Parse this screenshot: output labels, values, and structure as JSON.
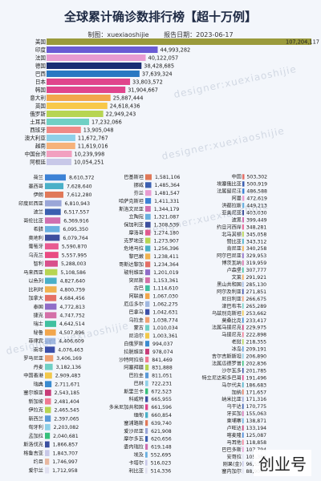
{
  "title": "全球累计确诊数排行榜【超十万例】",
  "producer_label": "制图：xuexiaoshijie",
  "report_label": "报告日期：2023-06-17",
  "watermark": "designer:xuexiaoshijie",
  "brand": "创业号",
  "chart_data": [
    {
      "type": "bar",
      "orientation": "horizontal",
      "xlim": [
        0,
        107204117
      ],
      "categories": [
        "美国",
        "印度",
        "法国",
        "德国",
        "巴西",
        "日本",
        "韩国",
        "意大利",
        "英国",
        "俄罗斯",
        "土耳其",
        "西班牙",
        "澳大利亚",
        "越南",
        "中国台湾",
        "阿根廷"
      ],
      "values": [
        107204117,
        44993282,
        40122057,
        38428685,
        37639324,
        33803572,
        31904667,
        25887444,
        24618436,
        22949243,
        17232066,
        13905048,
        11672767,
        11619016,
        10239998,
        10054251
      ],
      "value_labels": [
        "107,204,117",
        "44,993,282",
        "40,122,057",
        "38,428,685",
        "37,639,324",
        "33,803,572",
        "31,904,667",
        "25,887,444",
        "24,618,436",
        "22,949,243",
        "17,232,066",
        "13,905,048",
        "11,672,767",
        "11,619,016",
        "10,239,998",
        "10,054,251"
      ],
      "colors": [
        "#9a9a3c",
        "#6a5bd4",
        "#e89bd1",
        "#1b2f73",
        "#2a78c2",
        "#e0458c",
        "#e0458c",
        "#f2a64c",
        "#f8c84a",
        "#b7d552",
        "#6fd0c4",
        "#ef8a86",
        "#8ed0e8",
        "#f6b27a",
        "#f2a0c0",
        "#c8c8e8"
      ]
    },
    {
      "type": "bar",
      "orientation": "horizontal",
      "xlim": [
        0,
        8610372
      ],
      "categories": [
        "荷兰",
        "墨西哥",
        "伊朗",
        "印度尼西亚",
        "波兰",
        "哥伦比亚",
        "希腊",
        "奥地利",
        "葡萄牙",
        "乌克兰",
        "智利",
        "马来西亚",
        "以色列",
        "比利时",
        "加拿大",
        "泰国",
        "捷克",
        "瑞士",
        "秘鲁",
        "菲律宾",
        "南非",
        "罗马尼亚",
        "丹麦",
        "中国香港",
        "瑞典",
        "塞尔维亚",
        "新加坡",
        "伊拉克",
        "新西兰",
        "匈牙利",
        "孟加拉",
        "斯洛伐克",
        "格鲁吉亚",
        "约旦",
        "爱尔兰"
      ],
      "values": [
        8610372,
        7628640,
        7612280,
        6810943,
        6517557,
        6369916,
        6095350,
        6079764,
        5590870,
        5557995,
        5288003,
        5108586,
        4827640,
        4800759,
        4684456,
        4772813,
        4747752,
        4642514,
        4507896,
        4406609,
        4076463,
        3406169,
        3182136,
        2909483,
        2711671,
        2543185,
        2481404,
        2465545,
        2397065,
        2203082,
        2040681,
        1866857,
        1843707,
        1746997,
        1712958
      ],
      "value_labels": [
        "8,610,372",
        "7,628,640",
        "7,612,280",
        "6,810,943",
        "6,517,557",
        "6,369,916",
        "6,095,350",
        "6,079,764",
        "5,590,870",
        "5,557,995",
        "5,288,003",
        "5,108,586",
        "4,827,640",
        "4,800,759",
        "4,684,456",
        "4,772,813",
        "4,747,752",
        "4,642,514",
        "4,507,896",
        "4,406,609",
        "4,076,463",
        "3,406,169",
        "3,182,136",
        "2,909,483",
        "2,711,671",
        "2,543,185",
        "2,481,404",
        "2,465,545",
        "2,397,065",
        "2,203,082",
        "2,040,681",
        "1,866,857",
        "1,843,707",
        "1,746,997",
        "1,712,958"
      ],
      "colors": [
        "#3c82d6",
        "#4ab0c8",
        "#e07858",
        "#9aa6d8",
        "#3b5fb0",
        "#d06fb0",
        "#6ab0e0",
        "#3d4f9e",
        "#e85a90",
        "#e94b82",
        "#d8508c",
        "#b7d552",
        "#4ab0c8",
        "#f0b250",
        "#e46f66",
        "#8f6cc8",
        "#d470a8",
        "#40c0a0",
        "#f2a64c",
        "#a0b8e0",
        "#3c4fa8",
        "#f0a070",
        "#6fd0c4",
        "#f2c84a",
        "#3a8bd0",
        "#c83c78",
        "#f07a92",
        "#b7d552",
        "#5a9ad8",
        "#8ed0e8",
        "#36c07a",
        "#3a4fa0",
        "#c8c8e8",
        "#e8b8a0",
        "#e0e0f0"
      ]
    },
    {
      "type": "bar",
      "orientation": "horizontal",
      "xlim": [
        0,
        1581106
      ],
      "categories": [
        "巴基斯坦",
        "挪威",
        "芬兰",
        "哈萨克斯坦",
        "斯洛文尼亚",
        "立陶宛",
        "保加利亚",
        "摩洛哥",
        "克罗地亚",
        "危地马拉",
        "黎巴嫩",
        "哥斯达黎加",
        "玻利维亚",
        "突尼斯",
        "古巴",
        "阿联酋",
        "厄瓜多尔",
        "巴拿马",
        "乌拉圭",
        "蒙古",
        "尼泊尔",
        "白俄罗斯",
        "拉脱维亚",
        "沙特阿拉伯",
        "阿塞拜疆",
        "巴拉圭",
        "巴林",
        "斯里兰卡",
        "科威特",
        "多米尼加共和国",
        "缅甸",
        "塞浦路斯",
        "爱沙尼亚",
        "摩尔多瓦",
        "委内瑞拉",
        "埃及",
        "卡塔尔",
        "利比亚"
      ],
      "values": [
        1581106,
        1485364,
        1481547,
        1411331,
        1344179,
        1321087,
        1308539,
        1274180,
        1273907,
        1256396,
        1238411,
        1234364,
        1201019,
        1153361,
        1114610,
        1067030,
        1062275,
        1042631,
        1038774,
        1010034,
        1003361,
        994037,
        978074,
        841469,
        831888,
        811051,
        722231,
        672523,
        665955,
        661596,
        660854,
        639740,
        621908,
        620656,
        619148,
        552695,
        516023,
        514336
      ],
      "value_labels": [
        "1,581,106",
        "1,485,364",
        "1,481,547",
        "1,411,331",
        "1,344,179",
        "1,321,087",
        "1,308,539",
        "1,274,180",
        "1,273,907",
        "1,256,396",
        "1,238,411",
        "1,234,364",
        "1,201,019",
        "1,153,361",
        "1,114,610",
        "1,067,030",
        "1,062,275",
        "1,042,631",
        "1,038,774",
        "1,010,034",
        "1,003,361",
        "994,037",
        "978,074",
        "841,469",
        "831,888",
        "811,051",
        "722,231",
        "672,523",
        "665,955",
        "661,596",
        "660,854",
        "639,740",
        "621,908",
        "620,656",
        "619,148",
        "552,695",
        "516,023",
        "514,336"
      ],
      "colors": [
        "#e07858",
        "#3b5fb0",
        "#e89bd1",
        "#3c82d6",
        "#d06fb0",
        "#6ab0e0",
        "#3d4f9e",
        "#e85a90",
        "#b7d552",
        "#4ab0c8",
        "#f0b250",
        "#e46f66",
        "#8f6cc8",
        "#d470a8",
        "#40c0a0",
        "#f2a64c",
        "#a0b8e0",
        "#3c4fa8",
        "#f0a070",
        "#6fd0c4",
        "#f2c84a",
        "#3a8bd0",
        "#c83c78",
        "#f07a92",
        "#b7d552",
        "#5a9ad8",
        "#8ed0e8",
        "#36c07a",
        "#3a4fa0",
        "#e0458c",
        "#4ab0c8",
        "#e07858",
        "#9aa6d8",
        "#3b5fb0",
        "#d06fb0",
        "#6ab0e0",
        "#c8c8e8",
        "#e0e0f0"
      ]
    },
    {
      "type": "bar",
      "orientation": "horizontal",
      "xlim": [
        0,
        503302
      ],
      "categories": [
        "中国",
        "埃塞俄比亚",
        "法属留尼汪",
        "阿曼",
        "洪都拉斯",
        "亚美尼亚",
        "波黑",
        "约旦河西岸",
        "北马其顿",
        "赞比亚",
        "肯尼亚",
        "阿尔巴尼亚",
        "博茨瓦纳",
        "卢森堡",
        "文莱",
        "黑山共和国",
        "阿尔及利亚",
        "尼日利亚",
        "津巴布韦",
        "乌兹别克斯坦",
        "莫桑比克",
        "法属马提尼克",
        "马提尼克",
        "老挝",
        "冰岛",
        "吉尔吉斯斯坦",
        "法属瓜德罗普",
        "沙尔瓦多",
        "特立尼达和多巴哥",
        "马尔代夫",
        "加纳",
        "纳米比亚",
        "乌干达",
        "牙买加",
        "柬埔寨",
        "卢旺达",
        "喀麦隆",
        "马耳他",
        "巴巴多斯",
        "安哥拉",
        "刚果(金)",
        "塞内加尔"
      ],
      "values": [
        503302,
        500919,
        486588,
        472619,
        449213,
        403030,
        399449,
        348281,
        345058,
        343312,
        340258,
        329953,
        319959,
        307777,
        291921,
        285130,
        271851,
        266675,
        265289,
        253662,
        233417,
        229975,
        222898,
        218355,
        209191,
        206890,
        202836,
        201785,
        191496,
        186683,
        171657,
        171316,
        170775,
        155063,
        138871,
        133194,
        125087,
        118858,
        107794,
        105384,
        96556,
        88904
      ],
      "value_labels": [
        "503,302",
        "500,919",
        "486,588",
        "472,619",
        "449,213",
        "403,030",
        "399,449",
        "348,281",
        "345,058",
        "343,312",
        "340,258",
        "329,953",
        "319,959",
        "307,777",
        "291,921",
        "285,130",
        "271,851",
        "266,675",
        "265,289",
        "253,662",
        "233,417",
        "229,975",
        "222,898",
        "218,355",
        "209,191",
        "206,890",
        "202,836",
        "201,785",
        "191,496",
        "186,683",
        "171,657",
        "171,316",
        "170,775",
        "155,063",
        "138,871",
        "133,194",
        "125,087",
        "118,858",
        "107,794",
        "105,384",
        "96,556",
        "88,904"
      ],
      "colors": [
        "#e46f66",
        "#3b5fb0",
        "#3c82d6",
        "#e89bd1",
        "#6ab0e0",
        "#3d4f9e",
        "#d06fb0",
        "#e85a90",
        "#b7d552",
        "#4ab0c8",
        "#f0b250",
        "#8f6cc8",
        "#d470a8",
        "#40c0a0",
        "#f2a64c",
        "#a0b8e0",
        "#3c4fa8",
        "#f0a070",
        "#6fd0c4",
        "#f2c84a",
        "#3a8bd0",
        "#c83c78",
        "#f07a92",
        "#b7d552",
        "#5a9ad8",
        "#8ed0e8",
        "#36c07a",
        "#3a4fa0",
        "#e0458c",
        "#4ab0c8",
        "#e07858",
        "#9aa6d8",
        "#3b5fb0",
        "#d06fb0",
        "#6ab0e0",
        "#c83c78",
        "#3c82d6",
        "#f07a92",
        "#e89bd1",
        "#e0e0f0",
        "#c8c8e8",
        "#e0e0f0"
      ]
    }
  ]
}
